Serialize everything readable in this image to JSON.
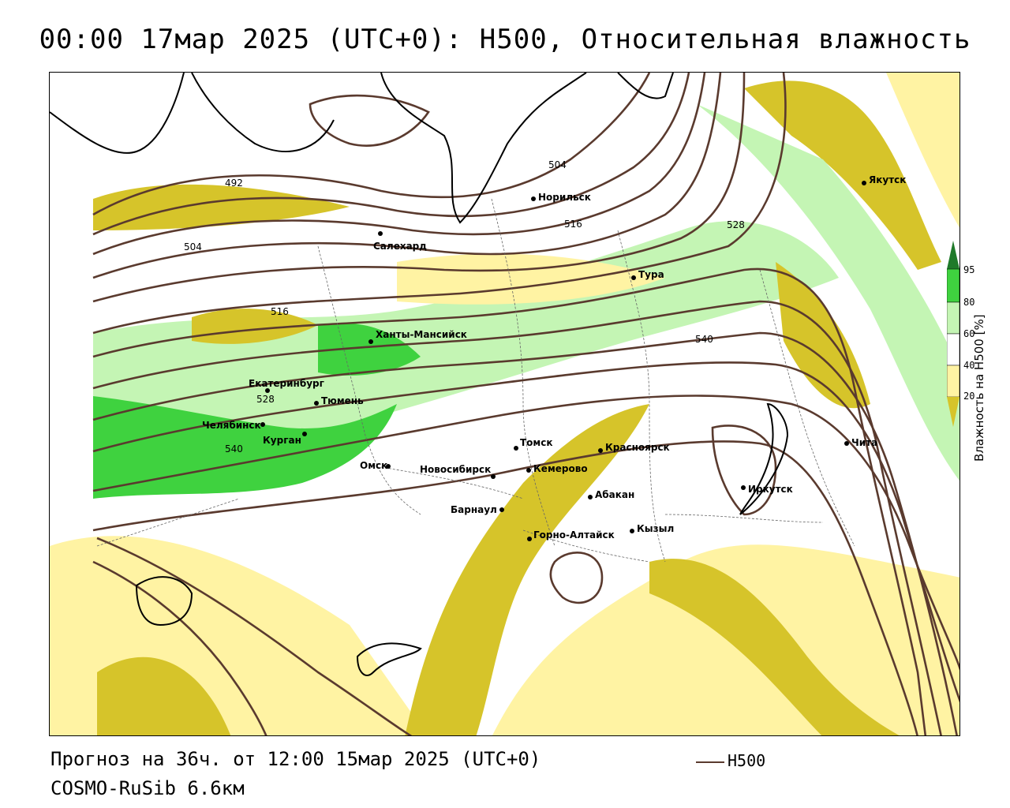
{
  "title": "00:00 17мар 2025 (UTC+0): H500, Относительная влажность",
  "footer": {
    "forecast": "Прогноз на 36ч. от 12:00 15мар 2025 (UTC+0)",
    "model": "COSMO-RuSib 6.6км",
    "legend_label": "H500"
  },
  "colorbar": {
    "title": "Влажность на H500 [%]",
    "ticks": [
      "95",
      "80",
      "60",
      "40",
      "20"
    ],
    "colors": {
      "c95": "#1f7a2a",
      "c80_95": "#3fd23f",
      "c60_80": "#c4f5b4",
      "c40_60": "#ffffff",
      "c20_40": "#fff3a3",
      "c0_20": "#d6c42a"
    }
  },
  "contour_color": "#5a3a2e",
  "contour_labels": [
    "492",
    "504",
    "504",
    "516",
    "516",
    "528",
    "528",
    "540",
    "540"
  ],
  "cities": [
    "Якутск",
    "Норильск",
    "Салехард",
    "Тура",
    "Ханты-Мансийск",
    "Екатеринбург",
    "Тюмень",
    "Челябинск",
    "Курган",
    "Омск",
    "Новосибирск",
    "Томск",
    "Кемерово",
    "Красноярск",
    "Абакан",
    "Барнаул",
    "Горно-Алтайск",
    "Кызыл",
    "Иркутск",
    "Чита"
  ]
}
